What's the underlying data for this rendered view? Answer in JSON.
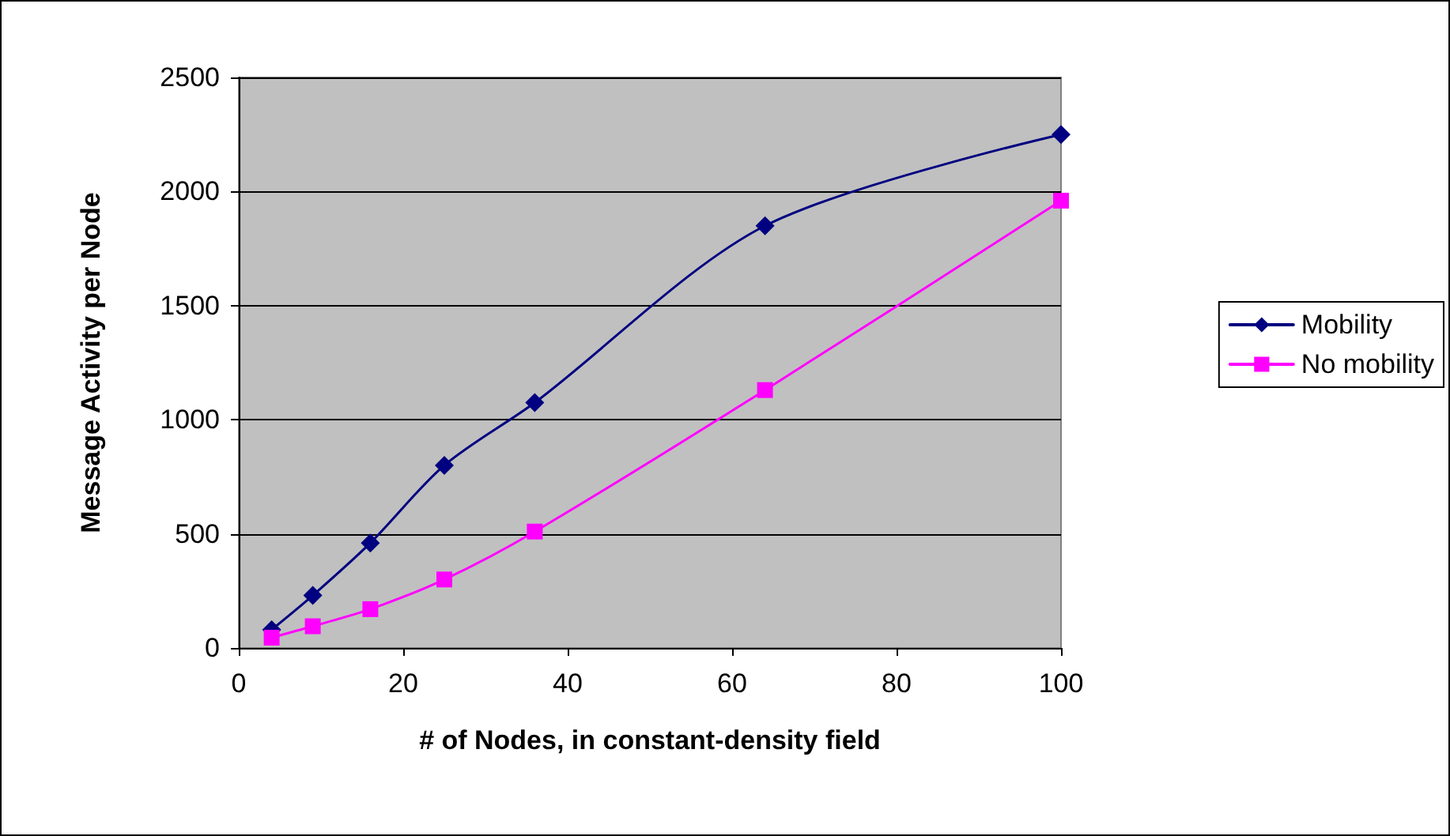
{
  "chart_data": {
    "type": "line",
    "xlabel": "# of Nodes, in constant-density field",
    "ylabel": "Message Activity per Node",
    "x": [
      4,
      9,
      16,
      25,
      36,
      64,
      100
    ],
    "series": [
      {
        "name": "Mobility",
        "color": "#000080",
        "marker": "diamond",
        "values": [
          80,
          230,
          460,
          800,
          1075,
          1850,
          2250
        ]
      },
      {
        "name": "No mobility",
        "color": "#ff00ff",
        "marker": "square",
        "values": [
          45,
          95,
          170,
          300,
          510,
          1130,
          1960
        ]
      }
    ],
    "xlim": [
      0,
      100
    ],
    "xticks": [
      0,
      20,
      40,
      60,
      80,
      100
    ],
    "ylim": [
      0,
      2500
    ],
    "yticks": [
      0,
      500,
      1000,
      1500,
      2000,
      2500
    ],
    "grid": "y",
    "legend": "right",
    "line_style": "solid"
  }
}
